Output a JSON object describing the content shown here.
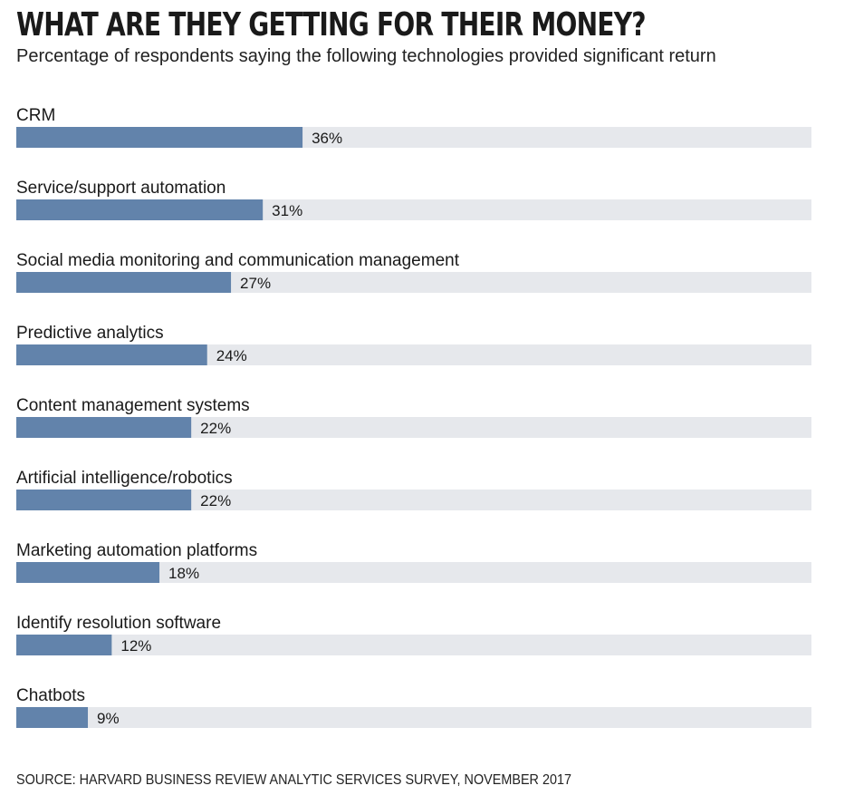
{
  "chart_data": {
    "type": "bar",
    "orientation": "horizontal",
    "title": "WHAT ARE THEY GETTING FOR THEIR MONEY?",
    "subtitle": "Percentage of respondents saying the following technologies provided significant return",
    "categories": [
      "CRM",
      "Service/support automation",
      "Social media monitoring and communication management",
      "Predictive analytics",
      "Content management systems",
      "Artificial intelligence/robotics",
      "Marketing automation platforms",
      "Identify resolution software",
      "Chatbots"
    ],
    "values": [
      36,
      31,
      27,
      24,
      22,
      22,
      18,
      12,
      9
    ],
    "value_labels": [
      "36%",
      "31%",
      "27%",
      "24%",
      "22%",
      "22%",
      "18%",
      "12%",
      "9%"
    ],
    "xlim": [
      0,
      100
    ],
    "grid": false,
    "legend": "none",
    "colors": {
      "bar": "#6283ab",
      "track": "#e6e8ec"
    },
    "source": "SOURCE: HARVARD BUSINESS REVIEW ANALYTIC SERVICES SURVEY, NOVEMBER 2017"
  }
}
